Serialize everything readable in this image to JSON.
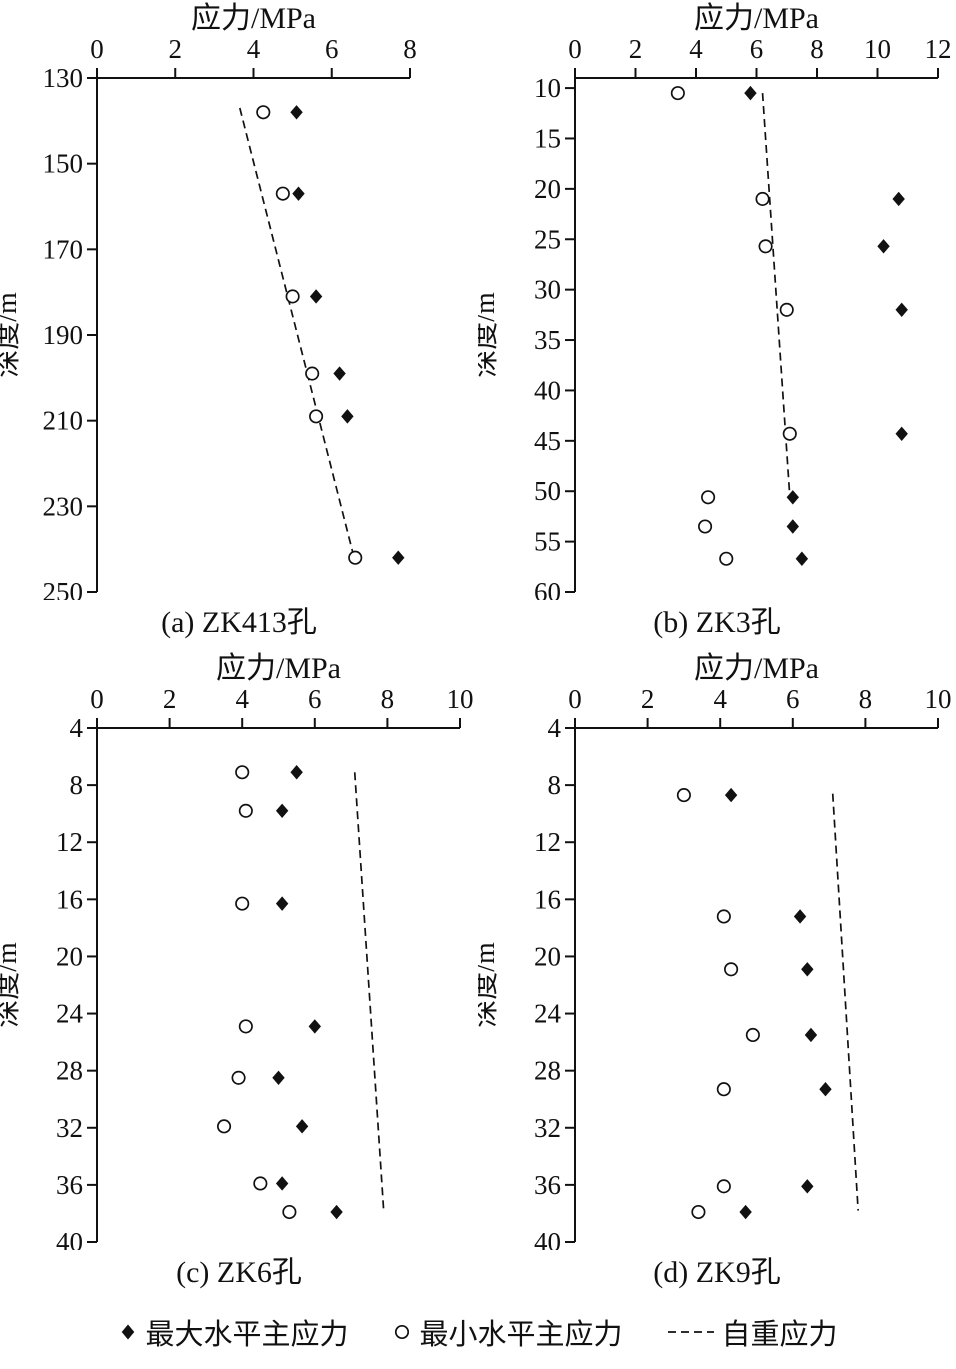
{
  "colors": {
    "ink": "#111111",
    "background": "#ffffff"
  },
  "legend": {
    "items": [
      {
        "marker": "diamond",
        "label": "最大水平主应力"
      },
      {
        "marker": "circle",
        "label": "最小水平主应力"
      },
      {
        "marker": "dashed-line",
        "label": "自重应力"
      }
    ]
  },
  "chart_data": [
    {
      "type": "scatter",
      "caption": "(a) ZK413孔",
      "title": "应力/MPa",
      "ylabel": "深度/m",
      "xlim": [
        0,
        8
      ],
      "xticks": [
        0,
        2,
        4,
        6,
        8
      ],
      "ylim": [
        130,
        250
      ],
      "yticks": [
        130,
        150,
        170,
        190,
        210,
        230,
        250
      ],
      "grid": false,
      "series": [
        {
          "name": "自重应力",
          "marker": "dashed-line",
          "points": [
            [
              3.65,
              137
            ],
            [
              6.6,
              243
            ]
          ]
        },
        {
          "name": "最小水平主应力",
          "marker": "circle",
          "points": [
            [
              4.25,
              138
            ],
            [
              4.75,
              157
            ],
            [
              5.0,
              181
            ],
            [
              5.5,
              199
            ],
            [
              5.6,
              209
            ],
            [
              6.6,
              242
            ]
          ]
        },
        {
          "name": "最大水平主应力",
          "marker": "diamond",
          "points": [
            [
              5.1,
              138
            ],
            [
              5.15,
              157
            ],
            [
              5.6,
              181
            ],
            [
              6.2,
              199
            ],
            [
              6.4,
              209
            ],
            [
              7.7,
              242
            ]
          ]
        }
      ]
    },
    {
      "type": "scatter",
      "caption": "(b) ZK3孔",
      "title": "应力/MPa",
      "ylabel": "深度/m",
      "xlim": [
        0,
        12
      ],
      "xticks": [
        0,
        2,
        4,
        6,
        8,
        10,
        12
      ],
      "ylim": [
        9,
        60
      ],
      "yticks": [
        10,
        15,
        20,
        25,
        30,
        35,
        40,
        45,
        50,
        55,
        60
      ],
      "grid": false,
      "series": [
        {
          "name": "自重应力",
          "marker": "dashed-line",
          "points": [
            [
              6.2,
              10.5
            ],
            [
              7.1,
              50.5
            ]
          ]
        },
        {
          "name": "最小水平主应力",
          "marker": "circle",
          "points": [
            [
              3.4,
              10.5
            ],
            [
              6.2,
              21
            ],
            [
              6.3,
              25.7
            ],
            [
              7.0,
              32
            ],
            [
              7.1,
              44.3
            ],
            [
              4.4,
              50.6
            ],
            [
              4.3,
              53.5
            ],
            [
              5.0,
              56.7
            ]
          ]
        },
        {
          "name": "最大水平主应力",
          "marker": "diamond",
          "points": [
            [
              5.8,
              10.5
            ],
            [
              10.7,
              21
            ],
            [
              10.2,
              25.7
            ],
            [
              10.8,
              32
            ],
            [
              10.8,
              44.3
            ],
            [
              7.2,
              50.6
            ],
            [
              7.2,
              53.5
            ],
            [
              7.5,
              56.7
            ]
          ]
        }
      ]
    },
    {
      "type": "scatter",
      "caption": "(c) ZK6孔",
      "title": "应力/MPa",
      "ylabel": "深度/m",
      "xlim": [
        0,
        10
      ],
      "xticks": [
        0,
        2,
        4,
        6,
        8,
        10
      ],
      "ylim": [
        4,
        40
      ],
      "yticks": [
        4,
        8,
        12,
        16,
        20,
        24,
        28,
        32,
        36,
        40
      ],
      "grid": false,
      "series": [
        {
          "name": "自重应力",
          "marker": "dashed-line",
          "points": [
            [
              7.1,
              7.1
            ],
            [
              7.9,
              37.9
            ]
          ]
        },
        {
          "name": "最小水平主应力",
          "marker": "circle",
          "points": [
            [
              4.0,
              7.1
            ],
            [
              4.1,
              9.8
            ],
            [
              4.0,
              16.3
            ],
            [
              4.1,
              24.9
            ],
            [
              3.9,
              28.5
            ],
            [
              3.5,
              31.9
            ],
            [
              4.5,
              35.9
            ],
            [
              5.3,
              37.9
            ]
          ]
        },
        {
          "name": "最大水平主应力",
          "marker": "diamond",
          "points": [
            [
              5.5,
              7.1
            ],
            [
              5.1,
              9.8
            ],
            [
              5.1,
              16.3
            ],
            [
              6.0,
              24.9
            ],
            [
              5.0,
              28.5
            ],
            [
              5.65,
              31.9
            ],
            [
              5.1,
              35.9
            ],
            [
              6.6,
              37.9
            ]
          ]
        }
      ]
    },
    {
      "type": "scatter",
      "caption": "(d) ZK9孔",
      "title": "应力/MPa",
      "ylabel": "深度/m",
      "xlim": [
        0,
        10
      ],
      "xticks": [
        0,
        2,
        4,
        6,
        8,
        10
      ],
      "ylim": [
        4,
        40
      ],
      "yticks": [
        4,
        8,
        12,
        16,
        20,
        24,
        28,
        32,
        36,
        40
      ],
      "grid": false,
      "series": [
        {
          "name": "自重应力",
          "marker": "dashed-line",
          "points": [
            [
              7.1,
              8.6
            ],
            [
              7.8,
              37.8
            ]
          ]
        },
        {
          "name": "最小水平主应力",
          "marker": "circle",
          "points": [
            [
              3.0,
              8.7
            ],
            [
              4.1,
              17.2
            ],
            [
              4.3,
              20.9
            ],
            [
              4.9,
              25.5
            ],
            [
              4.1,
              29.3
            ],
            [
              4.1,
              36.1
            ],
            [
              3.4,
              37.9
            ]
          ]
        },
        {
          "name": "最大水平主应力",
          "marker": "diamond",
          "points": [
            [
              4.3,
              8.7
            ],
            [
              6.2,
              17.2
            ],
            [
              6.4,
              20.9
            ],
            [
              6.5,
              25.5
            ],
            [
              6.9,
              29.3
            ],
            [
              6.4,
              36.1
            ],
            [
              4.7,
              37.9
            ]
          ]
        }
      ]
    }
  ]
}
